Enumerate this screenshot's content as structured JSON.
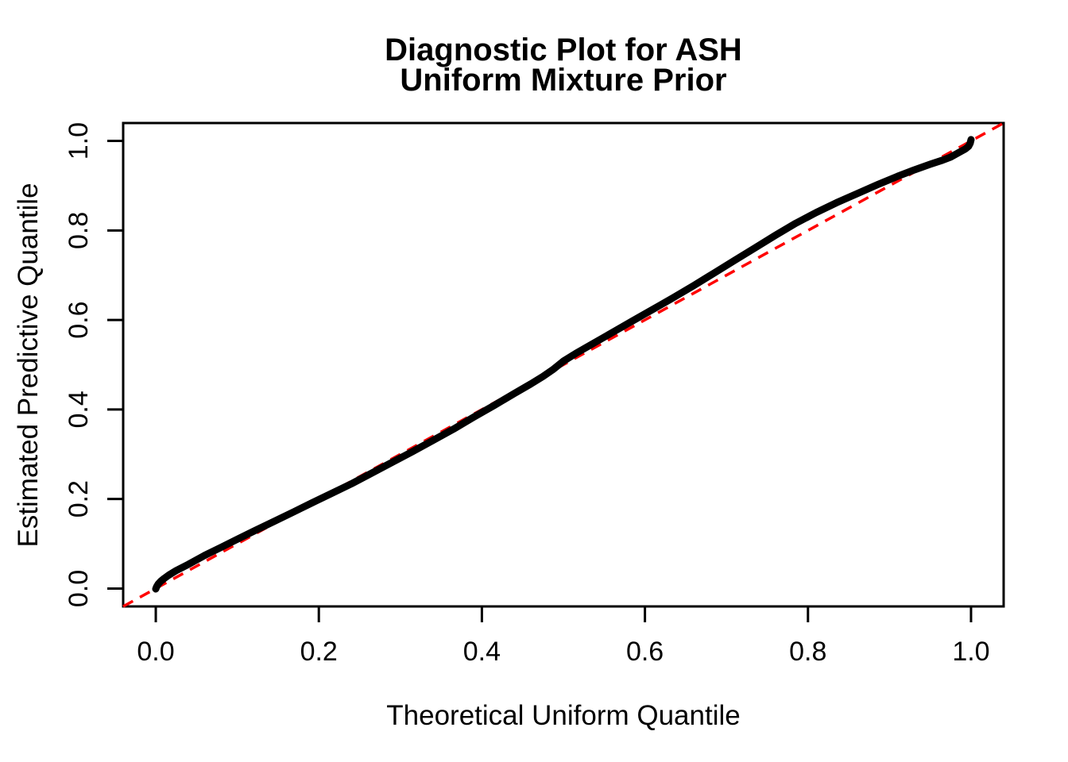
{
  "figure": {
    "title_line1": "Diagnostic Plot for ASH",
    "title_line2": "Uniform Mixture Prior",
    "background": "#FFFFFF",
    "text_color": "#000000"
  },
  "chart_data": {
    "type": "line",
    "subtype": "qq-diagnostic-plot",
    "title": "Diagnostic Plot for ASH Uniform Mixture Prior",
    "xlabel": "Theoretical Uniform Quantile",
    "ylabel": "Estimated Predictive Quantile",
    "xlim": [
      -0.04,
      1.04
    ],
    "ylim": [
      -0.04,
      1.04
    ],
    "x_tick_values": [
      0.0,
      0.2,
      0.4,
      0.6,
      0.8,
      1.0
    ],
    "y_tick_values": [
      0.0,
      0.2,
      0.4,
      0.6,
      0.8,
      1.0
    ],
    "x_tick_labels": [
      "0.0",
      "0.2",
      "0.4",
      "0.6",
      "0.8",
      "1.0"
    ],
    "y_tick_labels": [
      "0.0",
      "0.2",
      "0.4",
      "0.6",
      "0.8",
      "1.0"
    ],
    "grid": false,
    "legend": "none",
    "series": [
      {
        "name": "estimated-quantile-curve",
        "type": "line",
        "color": "#000000",
        "line_width": 9,
        "points": [
          [
            0.0,
            -0.001
          ],
          [
            0.001,
            0.004
          ],
          [
            0.003,
            0.01
          ],
          [
            0.006,
            0.016
          ],
          [
            0.01,
            0.022
          ],
          [
            0.016,
            0.03
          ],
          [
            0.025,
            0.04
          ],
          [
            0.04,
            0.054
          ],
          [
            0.06,
            0.074
          ],
          [
            0.08,
            0.092
          ],
          [
            0.1,
            0.11
          ],
          [
            0.12,
            0.128
          ],
          [
            0.145,
            0.15
          ],
          [
            0.17,
            0.172
          ],
          [
            0.19,
            0.19
          ],
          [
            0.215,
            0.212
          ],
          [
            0.24,
            0.234
          ],
          [
            0.265,
            0.258
          ],
          [
            0.29,
            0.282
          ],
          [
            0.315,
            0.306
          ],
          [
            0.34,
            0.331
          ],
          [
            0.365,
            0.356
          ],
          [
            0.39,
            0.383
          ],
          [
            0.415,
            0.409
          ],
          [
            0.44,
            0.436
          ],
          [
            0.46,
            0.457
          ],
          [
            0.475,
            0.474
          ],
          [
            0.487,
            0.489
          ],
          [
            0.5,
            0.508
          ],
          [
            0.515,
            0.525
          ],
          [
            0.535,
            0.546
          ],
          [
            0.56,
            0.572
          ],
          [
            0.585,
            0.598
          ],
          [
            0.61,
            0.624
          ],
          [
            0.635,
            0.65
          ],
          [
            0.66,
            0.677
          ],
          [
            0.685,
            0.705
          ],
          [
            0.71,
            0.733
          ],
          [
            0.735,
            0.761
          ],
          [
            0.76,
            0.789
          ],
          [
            0.785,
            0.816
          ],
          [
            0.81,
            0.84
          ],
          [
            0.835,
            0.862
          ],
          [
            0.86,
            0.882
          ],
          [
            0.885,
            0.902
          ],
          [
            0.91,
            0.921
          ],
          [
            0.93,
            0.935
          ],
          [
            0.95,
            0.948
          ],
          [
            0.965,
            0.957
          ],
          [
            0.975,
            0.964
          ],
          [
            0.985,
            0.974
          ],
          [
            0.993,
            0.982
          ],
          [
            0.997,
            0.988
          ],
          [
            0.999,
            0.995
          ],
          [
            1.0,
            1.003
          ]
        ]
      },
      {
        "name": "identity-reference-line",
        "type": "line",
        "color": "#FF0000",
        "style": "dashed",
        "line_width": 3.5,
        "points": [
          [
            -0.04,
            -0.04
          ],
          [
            1.04,
            1.04
          ]
        ]
      }
    ],
    "colors": {
      "curve": "#000000",
      "reference_line": "#FF0000",
      "axis": "#000000",
      "background": "#FFFFFF"
    }
  }
}
